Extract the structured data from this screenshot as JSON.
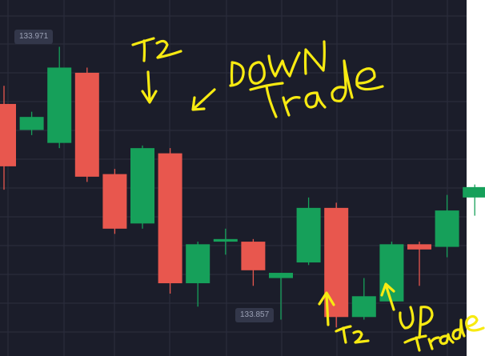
{
  "chart_data": {
    "type": "candlestick",
    "price_labels": [
      "133.971",
      "133.857"
    ],
    "candles": [
      {
        "open": 133.943,
        "close": 133.919,
        "high": 133.95,
        "low": 133.91
      },
      {
        "open": 133.933,
        "close": 133.938,
        "high": 133.94,
        "low": 133.931
      },
      {
        "open": 133.928,
        "close": 133.957,
        "high": 133.965,
        "low": 133.926
      },
      {
        "open": 133.955,
        "close": 133.915,
        "high": 133.957,
        "low": 133.913
      },
      {
        "open": 133.916,
        "close": 133.895,
        "high": 133.918,
        "low": 133.893
      },
      {
        "open": 133.897,
        "close": 133.926,
        "high": 133.927,
        "low": 133.895
      },
      {
        "open": 133.924,
        "close": 133.874,
        "high": 133.926,
        "low": 133.87
      },
      {
        "open": 133.874,
        "close": 133.889,
        "high": 133.89,
        "low": 133.865
      },
      {
        "open": 133.89,
        "close": 133.891,
        "high": 133.895,
        "low": 133.885
      },
      {
        "open": 133.89,
        "close": 133.879,
        "high": 133.891,
        "low": 133.873
      },
      {
        "open": 133.876,
        "close": 133.878,
        "high": 133.878,
        "low": 133.86
      },
      {
        "open": 133.882,
        "close": 133.903,
        "high": 133.907,
        "low": 133.881
      },
      {
        "open": 133.903,
        "close": 133.861,
        "high": 133.905,
        "low": 133.857
      },
      {
        "open": 133.861,
        "close": 133.869,
        "high": 133.876,
        "low": 133.86
      },
      {
        "open": 133.867,
        "close": 133.889,
        "high": 133.89,
        "low": 133.866
      },
      {
        "open": 133.889,
        "close": 133.887,
        "high": 133.89,
        "low": 133.873
      },
      {
        "open": 133.888,
        "close": 133.902,
        "high": 133.908,
        "low": 133.884
      },
      {
        "open": 133.907,
        "close": 133.911,
        "high": 133.912,
        "low": 133.9
      }
    ],
    "yrange": [
      133.846,
      133.983
    ],
    "grid": true,
    "colors": {
      "background": "#1b1d2a",
      "grid": "#2c2f3e",
      "up": "#16a05a",
      "down": "#e8574e",
      "annotation": "#f7ea11"
    }
  },
  "annotations": {
    "t2_top": "T2",
    "down_trade": "DOWN Trade",
    "t2_bottom": "T2",
    "up_trade": "UP Trade"
  }
}
